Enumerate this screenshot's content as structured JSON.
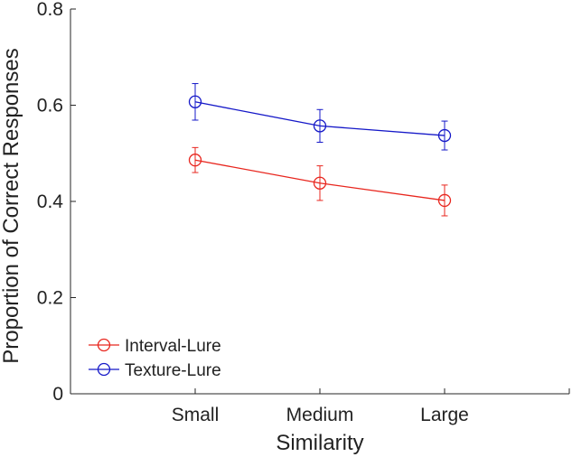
{
  "chart_data": {
    "type": "line",
    "title": "",
    "xlabel": "Similarity",
    "ylabel": "Proportion of Correct Responses",
    "categories": [
      "Small",
      "Medium",
      "Large"
    ],
    "xlim": [
      0,
      4
    ],
    "ylim": [
      0,
      0.8
    ],
    "yticks": [
      0,
      0.2,
      0.4,
      0.6,
      0.8
    ],
    "ytick_labels": [
      "0",
      "0.2",
      "0.4",
      "0.6",
      "0.8"
    ],
    "grid": false,
    "legend_position": "bottom-left",
    "series": [
      {
        "name": "Interval-Lure",
        "color": "#e8261e",
        "marker": "circle-open",
        "values": [
          0.486,
          0.438,
          0.402
        ],
        "errors": [
          0.026,
          0.036,
          0.032
        ]
      },
      {
        "name": "Texture-Lure",
        "color": "#1518c8",
        "marker": "circle-open",
        "values": [
          0.607,
          0.557,
          0.537
        ],
        "errors": [
          0.038,
          0.034,
          0.03
        ]
      }
    ]
  }
}
